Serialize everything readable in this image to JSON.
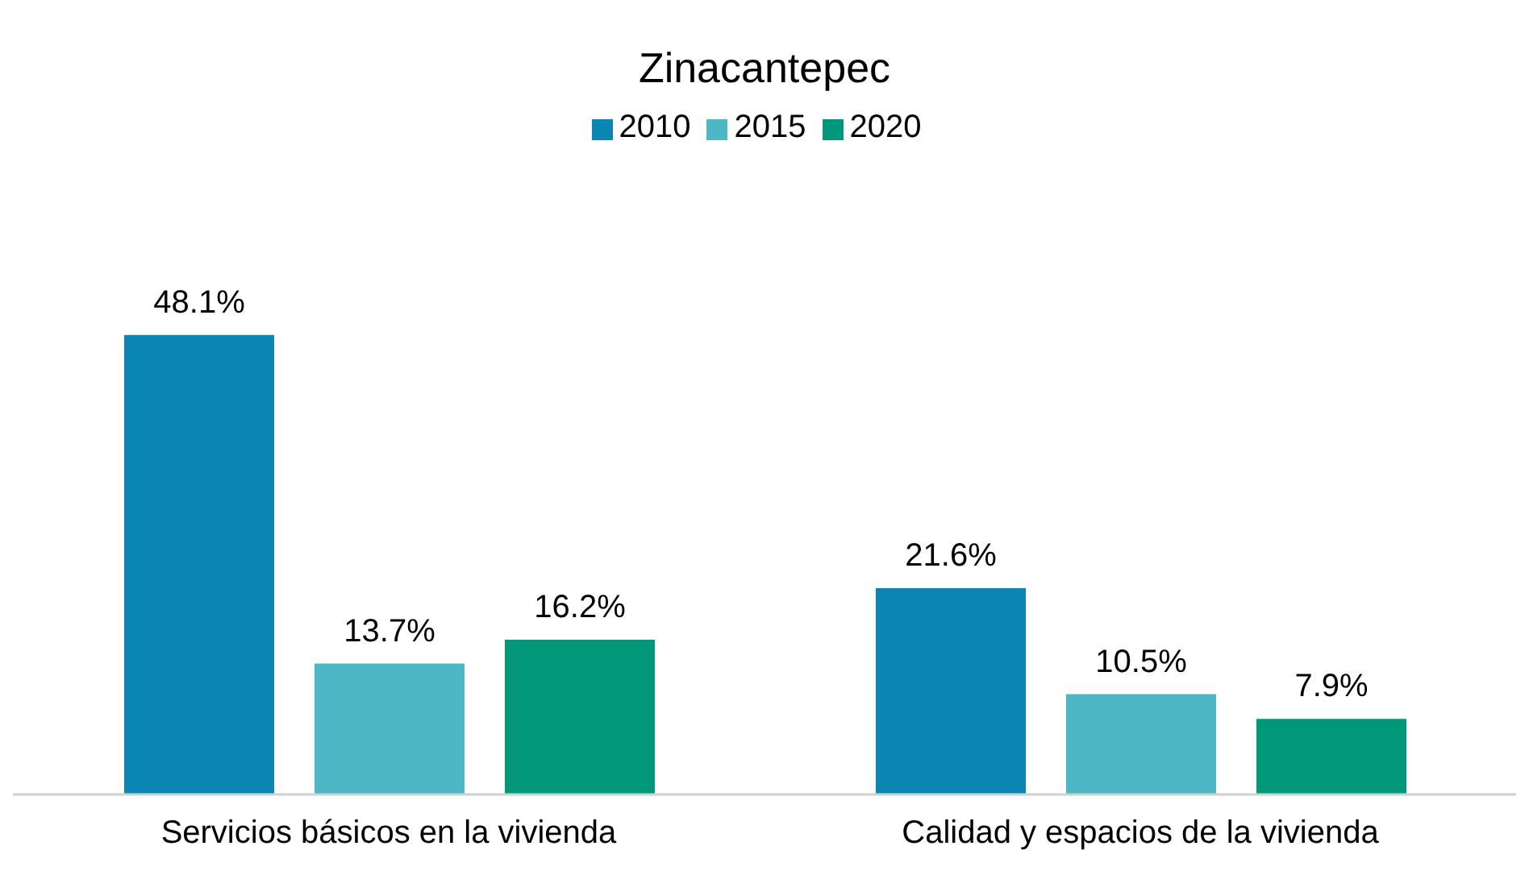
{
  "chart_data": {
    "type": "bar",
    "title": "Zinacantepec",
    "categories": [
      "Servicios básicos en la vivienda",
      "Calidad y espacios de la vivienda"
    ],
    "series": [
      {
        "name": "2010",
        "color": "#0b86b2",
        "values": [
          48.1,
          21.6
        ],
        "value_labels": [
          "48.1%",
          "21.6%"
        ]
      },
      {
        "name": "2015",
        "color": "#4db7c5",
        "values": [
          13.7,
          10.5
        ],
        "value_labels": [
          "13.7%",
          "10.5%"
        ]
      },
      {
        "name": "2020",
        "color": "#009878",
        "values": [
          16.2,
          7.9
        ],
        "value_labels": [
          "16.2%",
          "7.9%"
        ]
      }
    ],
    "legend": "top",
    "grid": false
  }
}
